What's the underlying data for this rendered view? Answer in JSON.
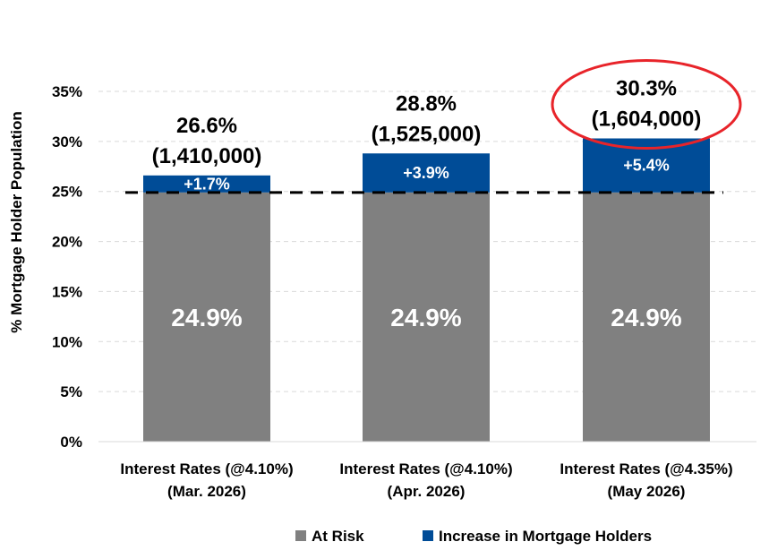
{
  "chart_data": {
    "type": "bar",
    "stacked": true,
    "title": "",
    "xlabel": "",
    "ylabel": "% Mortgage Holder Population",
    "ylim": [
      0,
      35
    ],
    "yticks": [
      "0%",
      "5%",
      "10%",
      "15%",
      "20%",
      "25%",
      "30%",
      "35%"
    ],
    "grid": true,
    "legend_position": "bottom",
    "reference_line": {
      "value": 24.9,
      "style": "dashed"
    },
    "categories": [
      {
        "line1": "Interest Rates (@4.10%)",
        "line2": "(Mar. 2026)"
      },
      {
        "line1": "Interest Rates (@4.10%)",
        "line2": "(Apr. 2026)"
      },
      {
        "line1": "Interest Rates     (@4.35%)",
        "line2": "(May 2026)"
      }
    ],
    "series": [
      {
        "name": "At Risk",
        "color": "#808080",
        "values": [
          24.9,
          24.9,
          24.9
        ],
        "labels": [
          "24.9%",
          "24.9%",
          "24.9%"
        ]
      },
      {
        "name": "Increase in Mortgage Holders",
        "color": "#004C97",
        "values": [
          1.7,
          3.9,
          5.4
        ],
        "labels": [
          "+1.7%",
          "+3.9%",
          "+5.4%"
        ]
      }
    ],
    "totals": [
      {
        "pct": "26.6%",
        "count": "(1,410,000)",
        "highlighted": false
      },
      {
        "pct": "28.8%",
        "count": "(1,525,000)",
        "highlighted": false
      },
      {
        "pct": "30.3%",
        "count": "(1,604,000)",
        "highlighted": true
      }
    ],
    "highlight_color": "#E8242A"
  }
}
